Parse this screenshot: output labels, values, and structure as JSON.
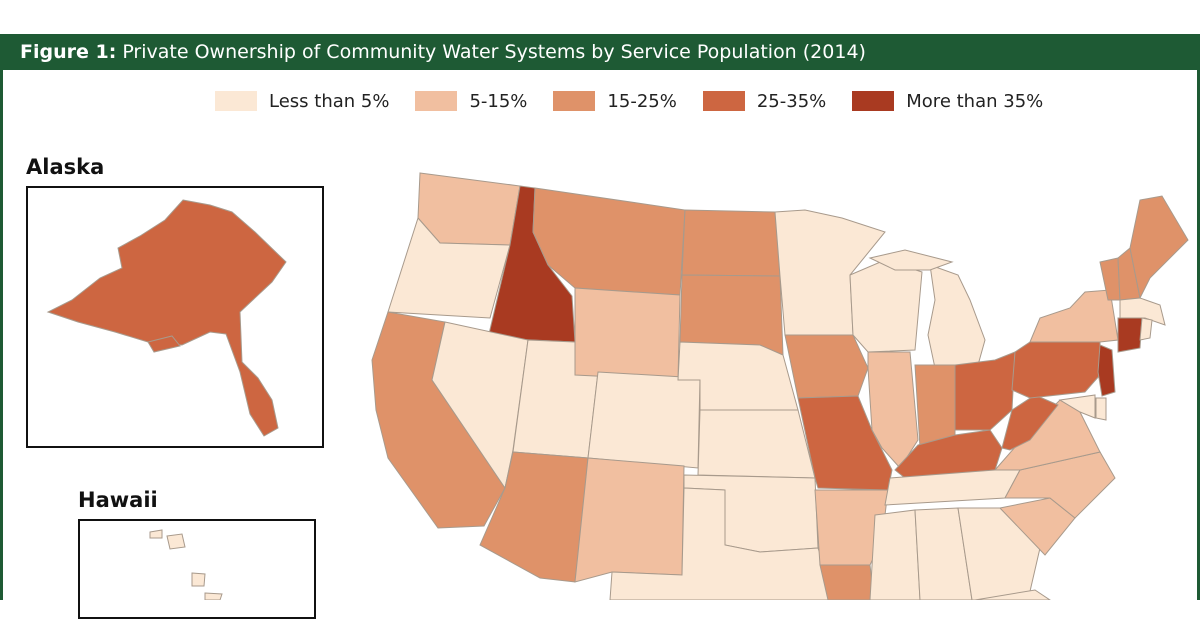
{
  "header": {
    "figure_label": "Figure 1:",
    "title": "Private Ownership of Community Water Systems by Service Population (2014)"
  },
  "legend": [
    {
      "label": "Less than 5%",
      "color": "#fbe8d5"
    },
    {
      "label": "5-15%",
      "color": "#f1bfa0"
    },
    {
      "label": "15-25%",
      "color": "#df9269"
    },
    {
      "label": "25-35%",
      "color": "#cd6641"
    },
    {
      "label": "More than 35%",
      "color": "#a93a21"
    }
  ],
  "insets": {
    "alaska_label": "Alaska",
    "hawaii_label": "Hawaii"
  },
  "states": {
    "Alaska": "25-35%",
    "Hawaii": "Less than 5%",
    "Washington": "5-15%",
    "Oregon": "Less than 5%",
    "California": "15-25%",
    "Idaho": "More than 35%",
    "Nevada": "Less than 5%",
    "Utah": "Less than 5%",
    "Arizona": "15-25%",
    "Montana": "15-25%",
    "Wyoming": "5-15%",
    "Colorado": "Less than 5%",
    "New Mexico": "5-15%",
    "North Dakota": "15-25%",
    "South Dakota": "15-25%",
    "Nebraska": "Less than 5%",
    "Kansas": "Less than 5%",
    "Oklahoma": "Less than 5%",
    "Texas": "Less than 5%",
    "Minnesota": "Less than 5%",
    "Iowa": "15-25%",
    "Missouri": "25-35%",
    "Arkansas": "5-15%",
    "Louisiana": "15-25%",
    "Wisconsin": "Less than 5%",
    "Illinois": "5-15%",
    "Michigan": "Less than 5%",
    "Indiana": "15-25%",
    "Ohio": "25-35%",
    "Kentucky": "25-35%",
    "Tennessee": "Less than 5%",
    "Mississippi": "Less than 5%",
    "Alabama": "Less than 5%",
    "Georgia": "Less than 5%",
    "Florida": "Less than 5%",
    "South Carolina": "5-15%",
    "North Carolina": "5-15%",
    "Virginia": "5-15%",
    "West Virginia": "25-35%",
    "Pennsylvania": "25-35%",
    "New York": "5-15%",
    "Vermont": "15-25%",
    "New Hampshire": "15-25%",
    "Maine": "15-25%",
    "Massachusetts": "Less than 5%",
    "Connecticut": "More than 35%",
    "Rhode Island": "Less than 5%",
    "New Jersey": "More than 35%",
    "Delaware": "Less than 5%",
    "Maryland": "Less than 5%"
  }
}
